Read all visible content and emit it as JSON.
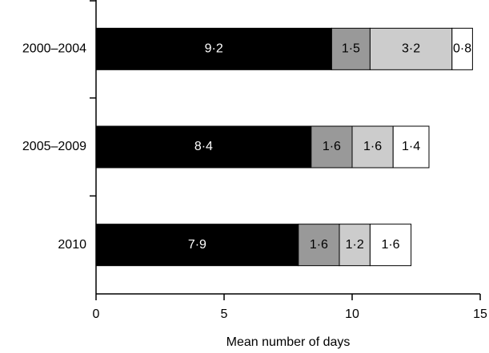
{
  "chart_data": {
    "type": "stacked-barh",
    "categories": [
      "2000–2004",
      "2005–2009",
      "2010"
    ],
    "series": [
      {
        "color": "#000000",
        "values": [
          9.2,
          8.4,
          7.9
        ],
        "value_labels": [
          "9·2",
          "8·4",
          "7·9"
        ]
      },
      {
        "color": "#999999",
        "values": [
          1.5,
          1.6,
          1.6
        ],
        "value_labels": [
          "1·5",
          "1·6",
          "1·6"
        ]
      },
      {
        "color": "#cccccc",
        "values": [
          3.2,
          1.6,
          1.2
        ],
        "value_labels": [
          "3·2",
          "1·6",
          "1·2"
        ]
      },
      {
        "color": "#ffffff",
        "values": [
          0.8,
          1.4,
          1.6
        ],
        "value_labels": [
          "0·8",
          "1·4",
          "1·6"
        ]
      }
    ],
    "xlabel": "Mean number of days",
    "xlim": [
      0,
      15
    ],
    "xticks": [
      0,
      5,
      10,
      15
    ]
  }
}
